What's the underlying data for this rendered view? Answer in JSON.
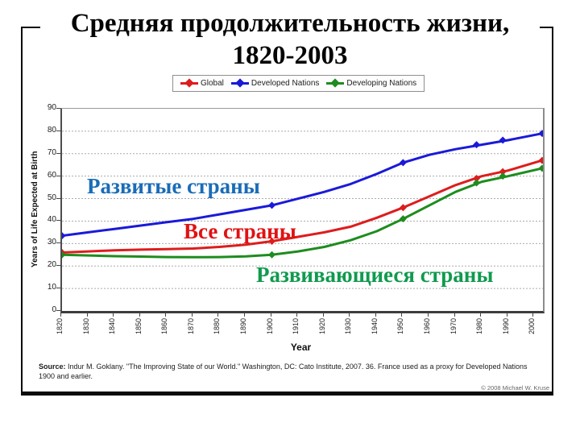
{
  "title": {
    "line1": "Средняя продолжительность жизни,",
    "line2": "1820-2003"
  },
  "annotations": {
    "developed": {
      "text": "Развитые страны",
      "color": "#1a6cb7"
    },
    "global": {
      "text": "Все страны",
      "color": "#e01212"
    },
    "developing": {
      "text": "Развивающиеся страны",
      "color": "#109a4e"
    }
  },
  "chart_data": {
    "type": "line",
    "title": "",
    "xlabel": "Year",
    "ylabel": "Years of Life Expected at Birth",
    "xlim": [
      1820,
      2003
    ],
    "ylim": [
      0,
      90
    ],
    "x_ticks": [
      1820,
      1830,
      1840,
      1850,
      1860,
      1870,
      1880,
      1890,
      1900,
      1910,
      1920,
      1930,
      1940,
      1950,
      1960,
      1970,
      1980,
      1990,
      2000
    ],
    "y_ticks": [
      0,
      10,
      20,
      30,
      40,
      50,
      60,
      70,
      80,
      90
    ],
    "grid": "horizontal-dotted",
    "legend_position": "top-center",
    "x": [
      1820,
      1830,
      1840,
      1850,
      1860,
      1870,
      1880,
      1890,
      1900,
      1910,
      1920,
      1930,
      1940,
      1950,
      1960,
      1970,
      1980,
      1990,
      2003
    ],
    "marker_years": [
      1820,
      1900,
      1950,
      1978,
      1988,
      2003
    ],
    "series": [
      {
        "name": "Global",
        "color": "#dd1d1d",
        "values": [
          26,
          26.5,
          27,
          27.3,
          27.5,
          27.8,
          28.5,
          29.5,
          31,
          33,
          35,
          37.5,
          41.5,
          46,
          51,
          56,
          60,
          62.5,
          67
        ],
        "marker_values": [
          26,
          31,
          46,
          59,
          62,
          67
        ]
      },
      {
        "name": "Developed Nations",
        "color": "#1a1ad9",
        "values": [
          33.5,
          35,
          36.5,
          38,
          39.5,
          41,
          43,
          45,
          47,
          50,
          53,
          56.5,
          61,
          66,
          69.5,
          72,
          74,
          76,
          79
        ],
        "marker_values": [
          33.5,
          47,
          66,
          74,
          76,
          79
        ]
      },
      {
        "name": "Developing Nations",
        "color": "#1e8c1e",
        "values": [
          25,
          24.7,
          24.4,
          24.2,
          24,
          23.9,
          24,
          24.3,
          25,
          26.5,
          28.5,
          31.5,
          35.5,
          41,
          47,
          53,
          57.5,
          60,
          63.5
        ],
        "marker_values": [
          25,
          25,
          41,
          57,
          60,
          63.5
        ]
      }
    ]
  },
  "footer": {
    "source_label": "Source:",
    "source_text": " Indur M. Goklany. \"The Improving State of our World.\" Washington, DC: Cato Institute, 2007. 36. France used as a proxy for Developed Nations 1900 and earlier.",
    "copyright": "© 2008 Michael W. Kruse"
  }
}
